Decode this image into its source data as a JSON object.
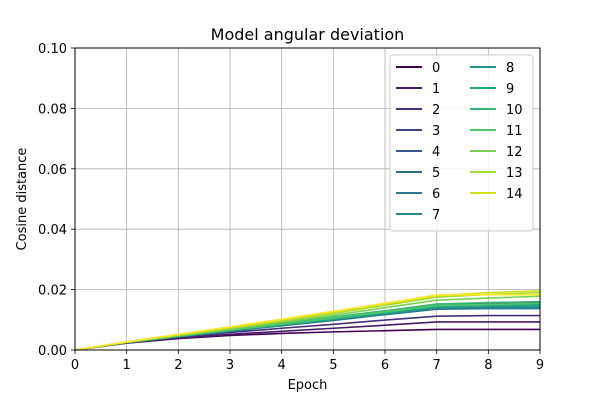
{
  "chart_data": {
    "type": "line",
    "title": "Model angular deviation",
    "xlabel": "Epoch",
    "ylabel": "Cosine distance",
    "xlim": [
      0,
      9
    ],
    "ylim": [
      0,
      0.1
    ],
    "xticks": [
      0,
      1,
      2,
      3,
      4,
      5,
      6,
      7,
      8,
      9
    ],
    "yticks": [
      0,
      0.02,
      0.04,
      0.06,
      0.08,
      0.1
    ],
    "xtick_labels": [
      "0",
      "1",
      "2",
      "3",
      "4",
      "5",
      "6",
      "7",
      "8",
      "9"
    ],
    "ytick_labels": [
      "0.00",
      "0.02",
      "0.04",
      "0.06",
      "0.08",
      "0.10"
    ],
    "grid": true,
    "legend": {
      "placement": "top-right",
      "columns": 2
    },
    "x": [
      0,
      1,
      2,
      3,
      4,
      5,
      6,
      7,
      8,
      9
    ],
    "series": [
      {
        "name": "0",
        "color": "#440154",
        "values": [
          0,
          0.0023,
          0.0038,
          0.0048,
          0.0055,
          0.006,
          0.0064,
          0.0068,
          0.0068,
          0.0068
        ]
      },
      {
        "name": "1",
        "color": "#481a6c",
        "values": [
          0,
          0.0023,
          0.0039,
          0.0052,
          0.0062,
          0.0072,
          0.0082,
          0.0093,
          0.0093,
          0.0093
        ]
      },
      {
        "name": "2",
        "color": "#472f7d",
        "values": [
          0,
          0.0024,
          0.0042,
          0.0058,
          0.0072,
          0.0085,
          0.0099,
          0.0112,
          0.0114,
          0.0114
        ]
      },
      {
        "name": "3",
        "color": "#414487",
        "values": [
          0,
          0.0025,
          0.0045,
          0.0065,
          0.0085,
          0.0105,
          0.0128,
          0.0152,
          0.0155,
          0.0155
        ]
      },
      {
        "name": "4",
        "color": "#39568c",
        "values": [
          0,
          0.0025,
          0.0046,
          0.0066,
          0.0087,
          0.0107,
          0.0127,
          0.0148,
          0.015,
          0.015
        ]
      },
      {
        "name": "5",
        "color": "#31688e",
        "values": [
          0,
          0.0025,
          0.0045,
          0.0064,
          0.0083,
          0.0101,
          0.012,
          0.014,
          0.0142,
          0.0142
        ]
      },
      {
        "name": "6",
        "color": "#2a788e",
        "values": [
          0,
          0.0025,
          0.0044,
          0.0062,
          0.008,
          0.0098,
          0.0117,
          0.0135,
          0.0137,
          0.0137
        ]
      },
      {
        "name": "7",
        "color": "#23888e",
        "values": [
          0,
          0.0025,
          0.0045,
          0.0064,
          0.0082,
          0.0101,
          0.012,
          0.0138,
          0.0141,
          0.0141
        ]
      },
      {
        "name": "8",
        "color": "#1f988b",
        "values": [
          0,
          0.0025,
          0.0046,
          0.0066,
          0.0085,
          0.0105,
          0.0125,
          0.0145,
          0.0148,
          0.0148
        ]
      },
      {
        "name": "9",
        "color": "#22a884",
        "values": [
          0,
          0.0025,
          0.0045,
          0.0064,
          0.0083,
          0.0102,
          0.0122,
          0.0142,
          0.0146,
          0.0146
        ]
      },
      {
        "name": "10",
        "color": "#35b779",
        "values": [
          0,
          0.0025,
          0.0046,
          0.0067,
          0.0088,
          0.0109,
          0.013,
          0.0152,
          0.0157,
          0.016
        ]
      },
      {
        "name": "11",
        "color": "#54c568",
        "values": [
          0,
          0.0025,
          0.0046,
          0.0066,
          0.0086,
          0.0106,
          0.0126,
          0.0147,
          0.0151,
          0.0154
        ]
      },
      {
        "name": "12",
        "color": "#7ad151",
        "values": [
          0,
          0.0026,
          0.0048,
          0.007,
          0.0092,
          0.0115,
          0.014,
          0.0165,
          0.0172,
          0.0178
        ]
      },
      {
        "name": "13",
        "color": "#a5db36",
        "values": [
          0,
          0.0026,
          0.0049,
          0.0072,
          0.0096,
          0.0121,
          0.0148,
          0.0175,
          0.0184,
          0.019
        ]
      },
      {
        "name": "14",
        "color": "#d2e21b",
        "values": [
          0,
          0.0027,
          0.0051,
          0.0075,
          0.01,
          0.0126,
          0.0153,
          0.018,
          0.019,
          0.0196
        ]
      },
      {
        "name": "",
        "color": "#fde725",
        "values": [
          0,
          0.0027,
          0.0052,
          0.0077,
          0.0102,
          0.0128,
          0.0155,
          0.0182,
          0.0183,
          0.0183
        ]
      }
    ]
  }
}
